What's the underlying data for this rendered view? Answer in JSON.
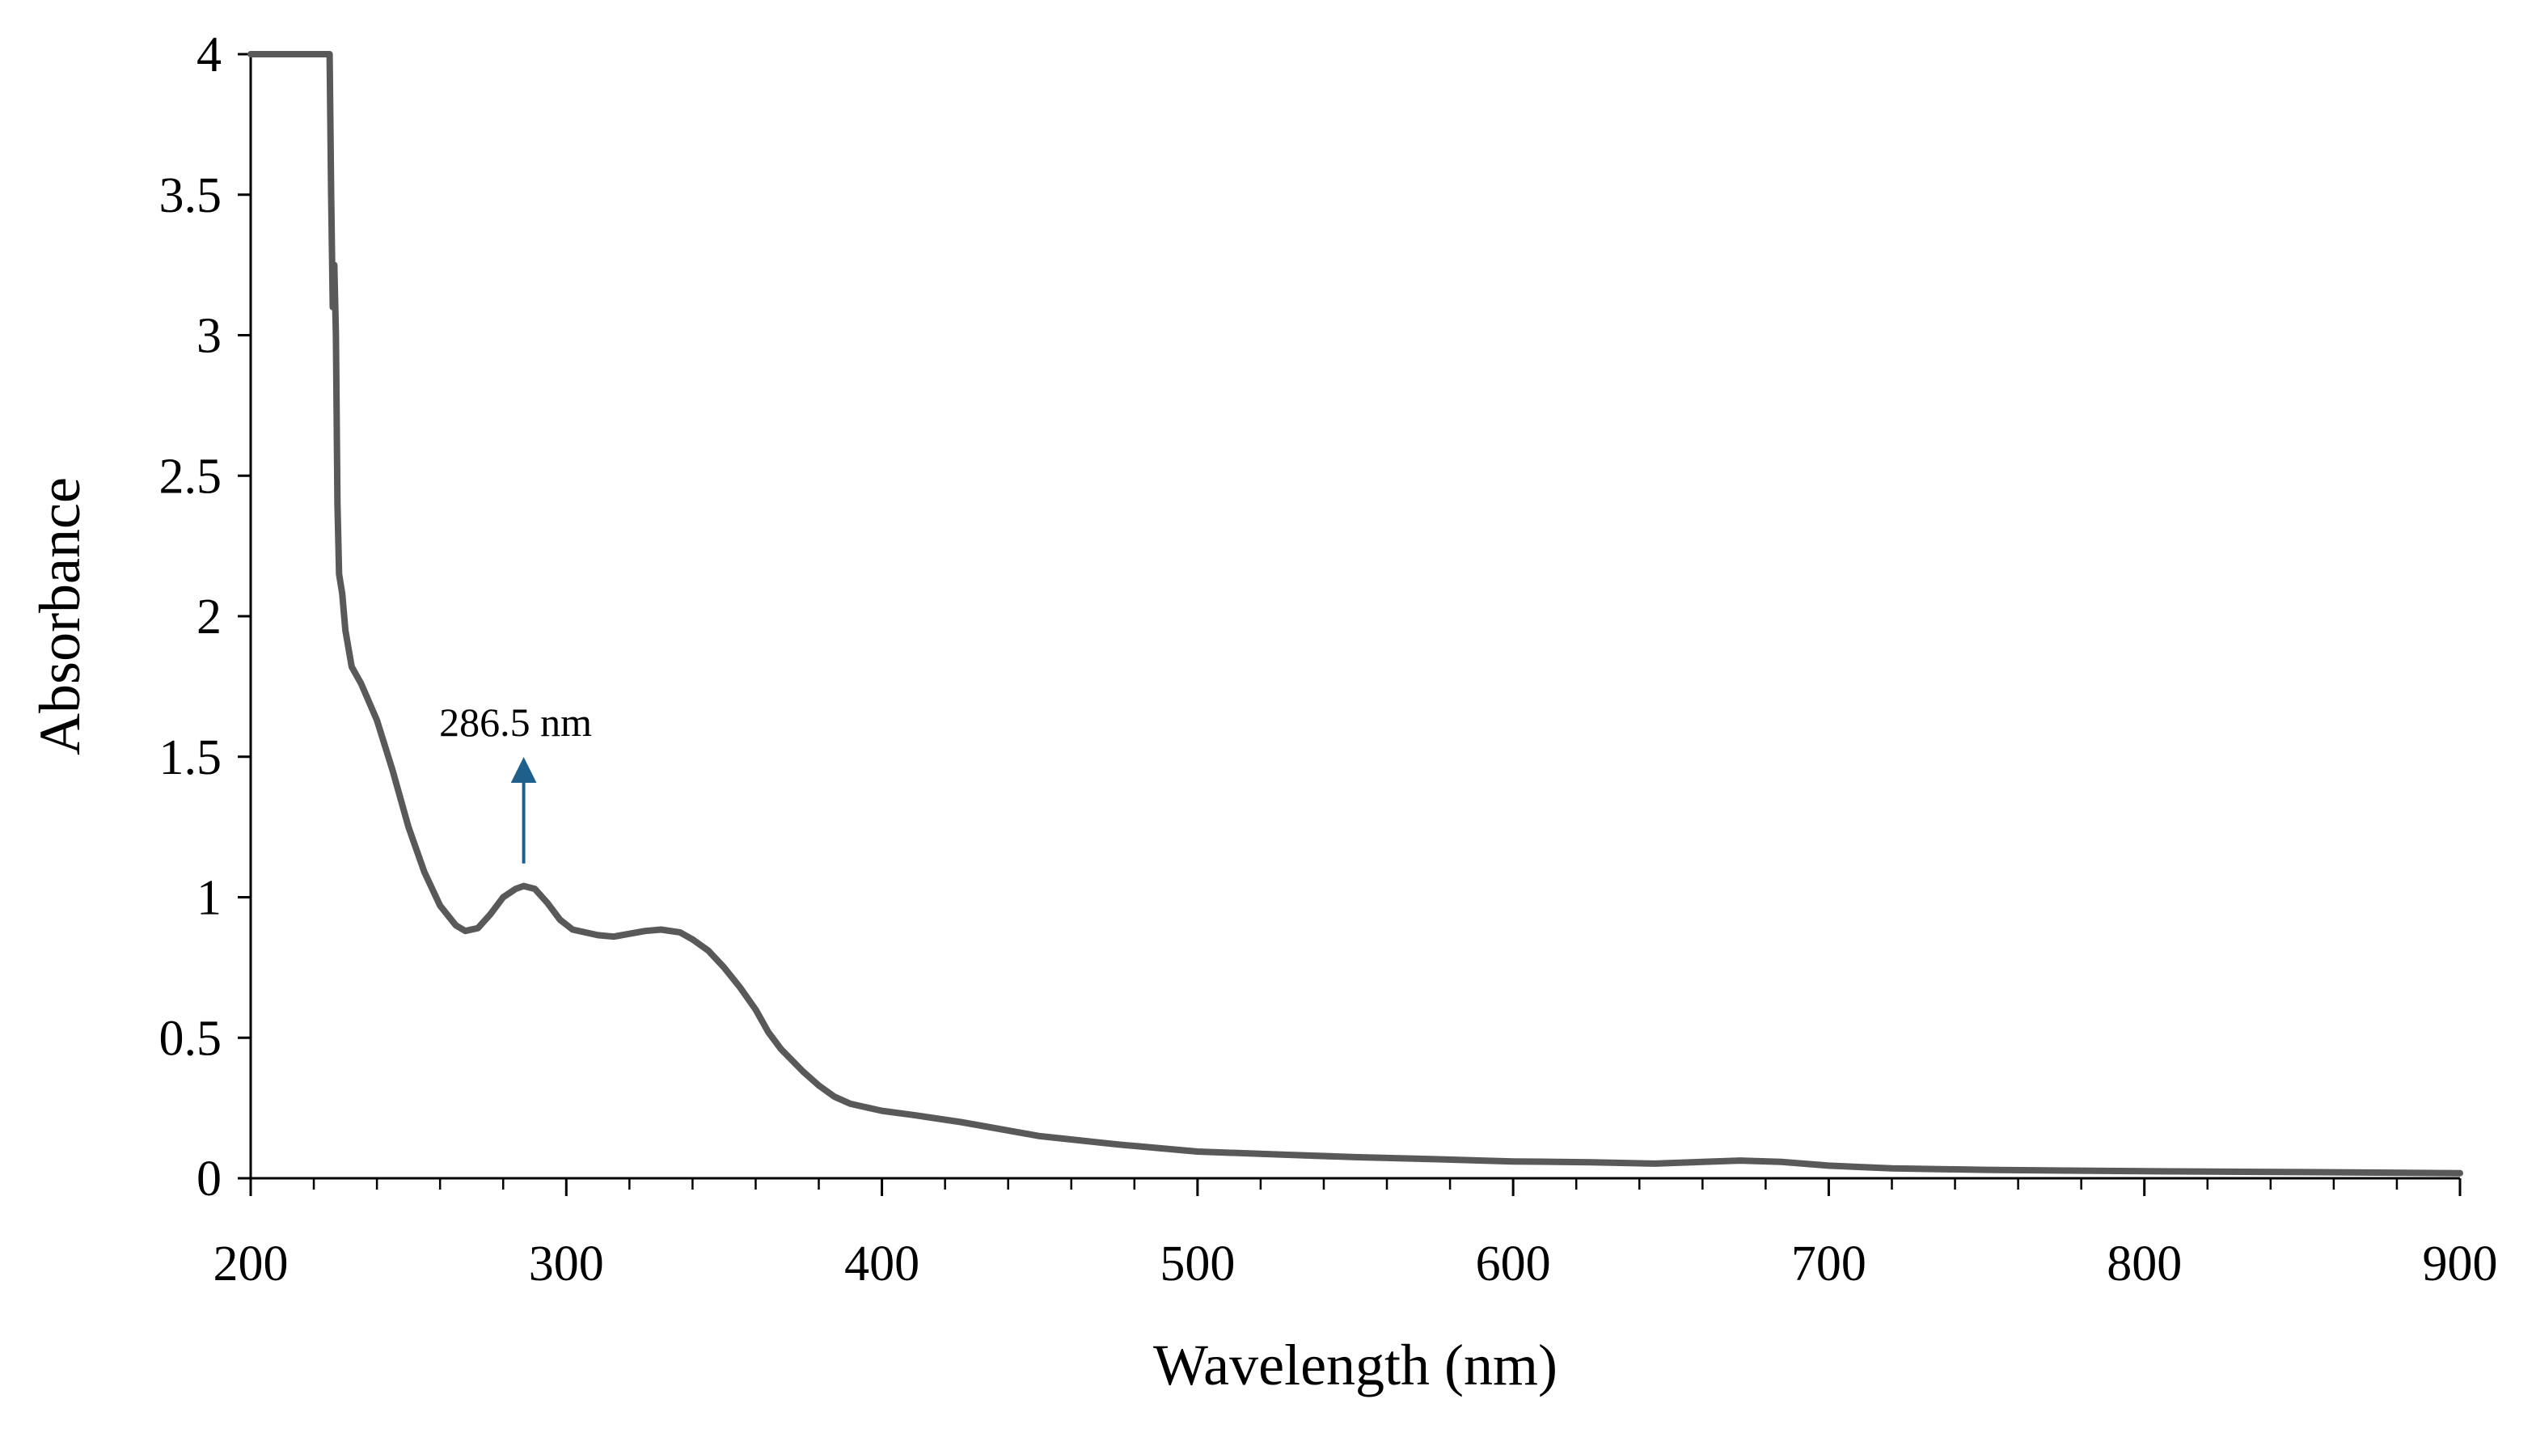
{
  "chart_data": {
    "type": "line",
    "title": "",
    "xlabel": "Wavelength (nm)",
    "ylabel": "Absorbance",
    "xlim": [
      200,
      900
    ],
    "ylim": [
      0,
      4
    ],
    "grid": false,
    "x_ticks": [
      200,
      300,
      400,
      500,
      600,
      700,
      800,
      900
    ],
    "x_tick_labels": [
      "200",
      "300",
      "400",
      "500",
      "600",
      "700",
      "800",
      "900"
    ],
    "y_ticks": [
      0,
      0.5,
      1,
      1.5,
      2,
      2.5,
      3,
      3.5,
      4
    ],
    "y_tick_labels": [
      "0",
      "0.5",
      "1",
      "1.5",
      "2",
      "2.5",
      "3",
      "3.5",
      "4"
    ],
    "x_minor_step": 20,
    "series": [
      {
        "name": "Absorbance",
        "color": "#595959",
        "points": [
          [
            200,
            4.0
          ],
          [
            225,
            4.0
          ],
          [
            225.5,
            3.5
          ],
          [
            226,
            3.1
          ],
          [
            226.5,
            3.25
          ],
          [
            227,
            3.0
          ],
          [
            227.5,
            2.4
          ],
          [
            228,
            2.15
          ],
          [
            229,
            2.08
          ],
          [
            230,
            1.95
          ],
          [
            232,
            1.82
          ],
          [
            235,
            1.76
          ],
          [
            240,
            1.63
          ],
          [
            245,
            1.45
          ],
          [
            250,
            1.25
          ],
          [
            255,
            1.09
          ],
          [
            260,
            0.97
          ],
          [
            265,
            0.9
          ],
          [
            268,
            0.88
          ],
          [
            272,
            0.89
          ],
          [
            276,
            0.94
          ],
          [
            280,
            1.0
          ],
          [
            284,
            1.03
          ],
          [
            286.5,
            1.04
          ],
          [
            290,
            1.03
          ],
          [
            294,
            0.98
          ],
          [
            298,
            0.92
          ],
          [
            302,
            0.885
          ],
          [
            310,
            0.865
          ],
          [
            315,
            0.86
          ],
          [
            320,
            0.87
          ],
          [
            325,
            0.88
          ],
          [
            330,
            0.885
          ],
          [
            336,
            0.875
          ],
          [
            340,
            0.85
          ],
          [
            345,
            0.81
          ],
          [
            350,
            0.75
          ],
          [
            355,
            0.68
          ],
          [
            360,
            0.6
          ],
          [
            364,
            0.52
          ],
          [
            368,
            0.46
          ],
          [
            375,
            0.38
          ],
          [
            380,
            0.33
          ],
          [
            385,
            0.29
          ],
          [
            390,
            0.265
          ],
          [
            400,
            0.24
          ],
          [
            410,
            0.225
          ],
          [
            425,
            0.2
          ],
          [
            450,
            0.15
          ],
          [
            475,
            0.12
          ],
          [
            500,
            0.095
          ],
          [
            525,
            0.085
          ],
          [
            550,
            0.075
          ],
          [
            575,
            0.068
          ],
          [
            600,
            0.06
          ],
          [
            625,
            0.057
          ],
          [
            645,
            0.052
          ],
          [
            660,
            0.058
          ],
          [
            672,
            0.063
          ],
          [
            685,
            0.058
          ],
          [
            700,
            0.045
          ],
          [
            720,
            0.035
          ],
          [
            750,
            0.03
          ],
          [
            800,
            0.025
          ],
          [
            850,
            0.022
          ],
          [
            900,
            0.018
          ]
        ]
      }
    ],
    "annotations": [
      {
        "text": "286.5 nm",
        "x": 286.5,
        "arrow_from_y": 1.12,
        "arrow_to_y": 1.47,
        "arrow_color": "#1f5f8b"
      }
    ]
  }
}
